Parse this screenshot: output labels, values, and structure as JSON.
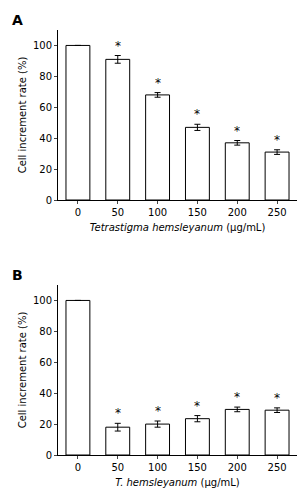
{
  "chart_data": [
    {
      "type": "bar",
      "title": "A",
      "categories": [
        0,
        50,
        100,
        150,
        200,
        250
      ],
      "values": [
        100,
        91,
        68,
        47,
        37,
        31
      ],
      "errors": [
        0,
        2.5,
        1.5,
        2.0,
        1.5,
        1.5
      ],
      "annotations": [
        {
          "category": 50,
          "text": "*"
        },
        {
          "category": 100,
          "text": "*"
        },
        {
          "category": 150,
          "text": "*"
        },
        {
          "category": 200,
          "text": "*"
        },
        {
          "category": 250,
          "text": "*"
        }
      ],
      "xlabel": "Tetrastigma hemsleyanum (μg/mL)",
      "ylabel": "Cell increment rate (%)",
      "ylim": [
        0,
        110
      ],
      "yticks": [
        0,
        20,
        40,
        60,
        80,
        100
      ],
      "color": "#ffffff",
      "grid": false
    },
    {
      "type": "bar",
      "title": "B",
      "categories": [
        0,
        50,
        100,
        150,
        200,
        250
      ],
      "values": [
        100,
        18,
        20,
        23.5,
        29.5,
        29
      ],
      "errors": [
        0,
        2.5,
        2.0,
        2.0,
        1.5,
        1.5
      ],
      "annotations": [
        {
          "category": 50,
          "text": "*"
        },
        {
          "category": 100,
          "text": "*"
        },
        {
          "category": 150,
          "text": "*"
        },
        {
          "category": 200,
          "text": "*"
        },
        {
          "category": 250,
          "text": "*"
        }
      ],
      "xlabel": "T. hemsleyanum (μg/mL)",
      "ylabel": "Cell increment rate (%)",
      "ylim": [
        0,
        110
      ],
      "yticks": [
        0,
        20,
        40,
        60,
        80,
        100
      ],
      "color": "#ffffff",
      "grid": false
    }
  ]
}
